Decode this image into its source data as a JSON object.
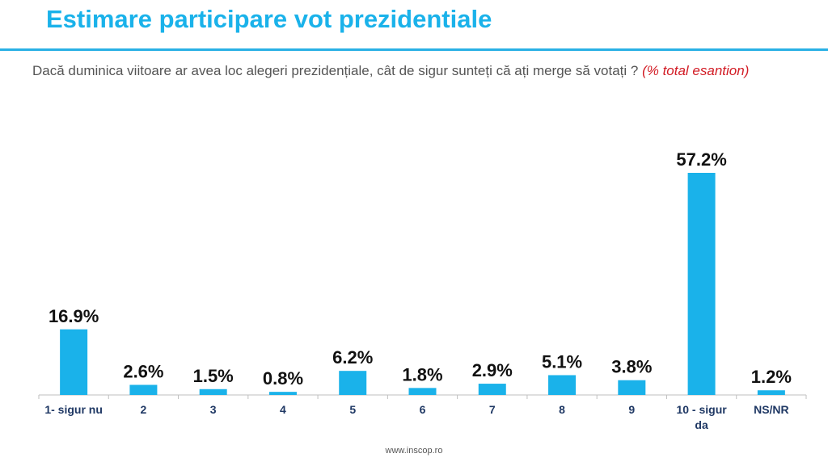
{
  "header": {
    "title": "Estimare participare vot prezidentiale",
    "question": "Dacă duminica viitoare ar avea loc alegeri prezidențiale, cât de sigur sunteți că ați merge să votați ?",
    "question_note": "(% total esantion)"
  },
  "footer": {
    "source": "www.inscop.ro"
  },
  "colors": {
    "bar": "#1ab2ea",
    "title": "#1ab2ea",
    "note": "#d21b24"
  },
  "chart_data": {
    "type": "bar",
    "categories": [
      "1- sigur nu",
      "2",
      "3",
      "4",
      "5",
      "6",
      "7",
      "8",
      "9",
      "10 - sigur da",
      "NS/NR"
    ],
    "values": [
      16.9,
      2.6,
      1.5,
      0.8,
      6.2,
      1.8,
      2.9,
      5.1,
      3.8,
      57.2,
      1.2
    ],
    "data_labels": [
      "16.9%",
      "2.6%",
      "1.5%",
      "0.8%",
      "6.2%",
      "1.8%",
      "2.9%",
      "5.1%",
      "3.8%",
      "57.2%",
      "1.2%"
    ],
    "title": "",
    "xlabel": "",
    "ylabel": "",
    "ylim": [
      0,
      60
    ],
    "grid": false,
    "legend": "none"
  }
}
